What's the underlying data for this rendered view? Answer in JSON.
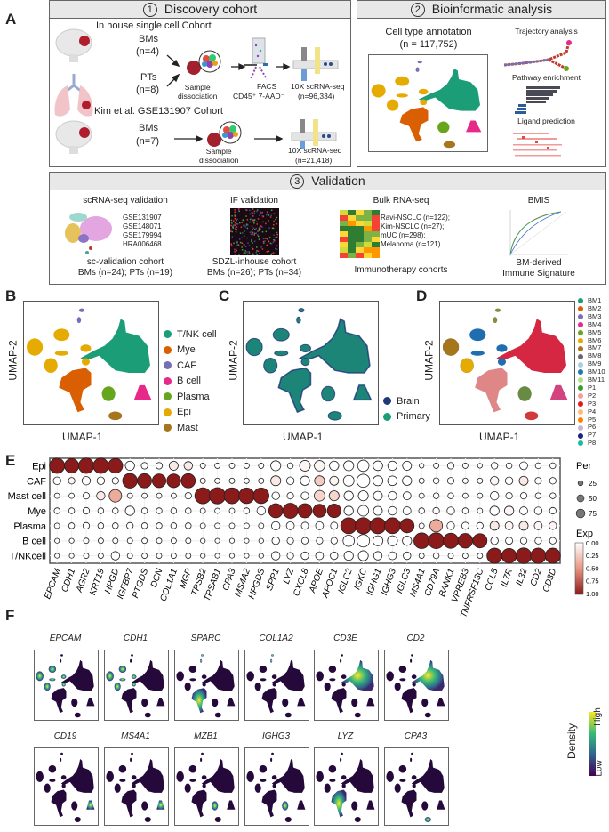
{
  "panel_labels": {
    "a": "A",
    "b": "B",
    "c": "C",
    "d": "D",
    "e": "E",
    "f": "F"
  },
  "discovery": {
    "number": "1",
    "title": "Discovery cohort",
    "inhouse_title": "In house single cell Cohort",
    "bms_label": "BMs",
    "bms_n": "(n=4)",
    "pts_label": "PTs",
    "pts_n": "(n=8)",
    "sample_dissociation": "Sample\ndissociation",
    "facs": "FACS",
    "facs_markers": "CD45⁺ 7-AAD⁻",
    "seq": "10X scRNA-seq",
    "seq_n": "(n=96,334)",
    "kim_title": "Kim et al. GSE131907 Cohort",
    "kim_bms_label": "BMs",
    "kim_bms_n": "(n=7)",
    "kim_sample_dissociation": "Sample\ndissociation",
    "kim_seq": "10X scRNA-seq",
    "kim_seq_n": "(n=21,418)"
  },
  "bioinfo": {
    "number": "2",
    "title": "Bioinformatic analysis",
    "annotation": "Cell type annotation",
    "annotation_n": "(n = 117,752)",
    "trajectory": "Trajectory analysis",
    "pathway": "Pathway enrichment",
    "ligand": "Ligand prediction"
  },
  "validation": {
    "number": "3",
    "title": "Validation",
    "sc": {
      "title": "scRNA-seq validation",
      "datasets": [
        "GSE131907",
        "GSE148071",
        "GSE179994",
        "HRA006468"
      ],
      "cohort": "sc-validation cohort",
      "counts": "BMs (n=24); PTs (n=19)"
    },
    "if": {
      "title": "IF validation",
      "cohort": "SDZL-inhouse cohort",
      "counts": "BMs (n=26); PTs (n=34)"
    },
    "bulk": {
      "title": "Bulk RNA-seq",
      "cohorts": [
        "Ravi-NSCLC (n=122);",
        "Kim-NSCLC (n=27);",
        "mUC (n=298);",
        "Melanoma (n=121)"
      ],
      "footer": "Immunotherapy cohorts"
    },
    "bmis": {
      "title": "BMIS",
      "footer1": "BM-derived",
      "footer2": "Immune Signature"
    }
  },
  "umap": {
    "xlabel": "UMAP-1",
    "ylabel": "UMAP-2",
    "celltype_legend": [
      {
        "label": "T/NK cell",
        "key": "tnk",
        "color": "#1b9e77"
      },
      {
        "label": "Mye",
        "key": "mye",
        "color": "#d95f02"
      },
      {
        "label": "CAF",
        "key": "caf",
        "color": "#7570b3"
      },
      {
        "label": "B cell",
        "key": "b",
        "color": "#e7298a"
      },
      {
        "label": "Plasma",
        "key": "plasma",
        "color": "#66a61e"
      },
      {
        "label": "Epi",
        "key": "epi",
        "color": "#e6ab02"
      },
      {
        "label": "Mast",
        "key": "mast",
        "color": "#a6761d"
      }
    ],
    "origin_legend": [
      {
        "label": "Brain",
        "color": "#1f3a7a"
      },
      {
        "label": "Primary",
        "color": "#1b9e77"
      }
    ],
    "sample_legend": [
      {
        "label": "BM1",
        "color": "#1b9e77"
      },
      {
        "label": "BM2",
        "color": "#d95f02"
      },
      {
        "label": "BM3",
        "color": "#7570b3"
      },
      {
        "label": "BM4",
        "color": "#e7298a"
      },
      {
        "label": "BM5",
        "color": "#66a61e"
      },
      {
        "label": "BM6",
        "color": "#e6ab02"
      },
      {
        "label": "BM7",
        "color": "#a6761d"
      },
      {
        "label": "BM8",
        "color": "#666666"
      },
      {
        "label": "BM9",
        "color": "#a6cee3"
      },
      {
        "label": "BM10",
        "color": "#1f78b4"
      },
      {
        "label": "BM11",
        "color": "#b2df8a"
      },
      {
        "label": "P1",
        "color": "#33a02c"
      },
      {
        "label": "P2",
        "color": "#fb9a99"
      },
      {
        "label": "P3",
        "color": "#e31a1c"
      },
      {
        "label": "P4",
        "color": "#fdbf6f"
      },
      {
        "label": "P5",
        "color": "#ff7f00"
      },
      {
        "label": "P6",
        "color": "#cab2d6"
      },
      {
        "label": "P7",
        "color": "#1a237e"
      },
      {
        "label": "P8",
        "color": "#1abc9c"
      }
    ]
  },
  "chart_data": {
    "type": "heatmap",
    "encoding": "dot size = percent expressing, dot color = scaled expression",
    "rows": [
      "Epi",
      "CAF",
      "Mast cell",
      "Mye",
      "Plasma",
      "B cell",
      "T/NKcell"
    ],
    "genes": [
      "EPCAM",
      "CDH1",
      "AGR2",
      "KRT19",
      "HPGD",
      "IGFBP7",
      "PTGDS",
      "DCN",
      "COL1A1",
      "MGP",
      "TPSB2",
      "TPSAB1",
      "CPA3",
      "MS4A2",
      "HPGDS",
      "SPP1",
      "LYZ",
      "CXCL8",
      "APOE",
      "APOC1",
      "IGLC2",
      "IGKC",
      "IGHG1",
      "IGHG3",
      "IGLC3",
      "MS4A1",
      "CD79A",
      "BANK1",
      "VPREB3",
      "TNFRSF13C",
      "CCL5",
      "IL7R",
      "IL32",
      "CD2",
      "CD3D"
    ],
    "pct": [
      [
        80,
        72,
        82,
        82,
        75,
        30,
        15,
        15,
        28,
        25,
        10,
        10,
        10,
        10,
        10,
        35,
        12,
        40,
        38,
        30,
        35,
        45,
        32,
        30,
        28,
        8,
        10,
        15,
        10,
        8,
        15,
        12,
        22,
        12,
        12
      ],
      [
        20,
        15,
        25,
        20,
        15,
        75,
        70,
        65,
        65,
        70,
        10,
        10,
        10,
        10,
        10,
        35,
        20,
        30,
        35,
        28,
        40,
        60,
        35,
        32,
        30,
        10,
        12,
        15,
        10,
        10,
        25,
        20,
        28,
        15,
        15
      ],
      [
        10,
        10,
        15,
        25,
        55,
        10,
        10,
        10,
        10,
        15,
        90,
        92,
        88,
        85,
        85,
        20,
        15,
        20,
        40,
        35,
        30,
        35,
        28,
        25,
        22,
        10,
        12,
        12,
        10,
        10,
        25,
        15,
        15,
        12,
        12
      ],
      [
        12,
        12,
        15,
        12,
        12,
        30,
        12,
        12,
        12,
        12,
        10,
        10,
        10,
        12,
        25,
        70,
        80,
        70,
        60,
        65,
        30,
        40,
        28,
        25,
        22,
        12,
        15,
        20,
        12,
        10,
        30,
        30,
        22,
        20,
        15
      ],
      [
        10,
        12,
        15,
        12,
        12,
        15,
        12,
        12,
        12,
        12,
        10,
        10,
        10,
        10,
        10,
        25,
        22,
        18,
        22,
        18,
        90,
        92,
        90,
        88,
        70,
        10,
        55,
        20,
        18,
        15,
        28,
        22,
        28,
        22,
        20
      ],
      [
        8,
        8,
        10,
        10,
        10,
        10,
        10,
        10,
        10,
        10,
        8,
        8,
        8,
        8,
        8,
        20,
        15,
        15,
        15,
        15,
        45,
        55,
        35,
        35,
        30,
        85,
        88,
        80,
        75,
        70,
        20,
        18,
        15,
        15,
        15
      ],
      [
        8,
        8,
        10,
        10,
        25,
        10,
        10,
        10,
        10,
        10,
        8,
        8,
        8,
        8,
        8,
        25,
        15,
        20,
        22,
        20,
        30,
        35,
        25,
        22,
        20,
        10,
        12,
        10,
        10,
        10,
        80,
        75,
        85,
        82,
        80
      ]
    ],
    "exp": [
      [
        1,
        1,
        1,
        1,
        1,
        0,
        0,
        0,
        0.1,
        0.1,
        0,
        0,
        0,
        0,
        0,
        0,
        0,
        0.05,
        0.05,
        0,
        0,
        0,
        0,
        0,
        0,
        0,
        0,
        0,
        0,
        0,
        0,
        0,
        0,
        0,
        0
      ],
      [
        0,
        0.05,
        0.02,
        0,
        0,
        1,
        1,
        1,
        1,
        1,
        0,
        0,
        0,
        0,
        0,
        0.1,
        0,
        0,
        0.25,
        0.05,
        0,
        0,
        0,
        0,
        0,
        0,
        0,
        0,
        0,
        0,
        0.05,
        0,
        0.1,
        0,
        0
      ],
      [
        0,
        0,
        0,
        0.1,
        0.4,
        0,
        0,
        0,
        0,
        0,
        1,
        1,
        1,
        1,
        1,
        0,
        0,
        0,
        0.2,
        0.2,
        0,
        0,
        0,
        0,
        0,
        0,
        0,
        0,
        0,
        0,
        0,
        0,
        0,
        0,
        0
      ],
      [
        0,
        0,
        0,
        0,
        0,
        0,
        0,
        0,
        0,
        0,
        0,
        0,
        0,
        0,
        0,
        1,
        1,
        1,
        1,
        1,
        0,
        0,
        0,
        0,
        0,
        0,
        0,
        0,
        0,
        0,
        0,
        0.05,
        0,
        0,
        0
      ],
      [
        0,
        0,
        0,
        0,
        0,
        0,
        0,
        0,
        0,
        0,
        0,
        0,
        0,
        0,
        0,
        0,
        0,
        0,
        0,
        0,
        1,
        1,
        1,
        1,
        1,
        0,
        0.4,
        0,
        0,
        0,
        0.1,
        0.05,
        0.1,
        0.05,
        0.05
      ],
      [
        0,
        0,
        0,
        0,
        0,
        0,
        0,
        0,
        0,
        0,
        0,
        0,
        0,
        0,
        0,
        0,
        0,
        0,
        0,
        0,
        0,
        0,
        0,
        0,
        0,
        1,
        1,
        1,
        1,
        1,
        0,
        0,
        0,
        0,
        0
      ],
      [
        0,
        0,
        0,
        0,
        0,
        0,
        0,
        0,
        0,
        0,
        0,
        0,
        0,
        0,
        0,
        0,
        0,
        0,
        0,
        0,
        0,
        0,
        0,
        0,
        0,
        0,
        0,
        0,
        0,
        0,
        1,
        1,
        1,
        1,
        1
      ]
    ],
    "size_legend": {
      "title": "Per",
      "values": [
        25,
        50,
        75
      ]
    },
    "color_legend": {
      "title": "Exp",
      "ticks": [
        "0.00",
        "0.25",
        "0.50",
        "0.75",
        "1.00"
      ],
      "low_color": "#ffffff",
      "high_color": "#8b1a1a"
    }
  },
  "density": {
    "legend_title": "Density",
    "high": "High",
    "low": "Low",
    "panels": [
      {
        "gene": "EPCAM",
        "highlight": [
          "epi"
        ]
      },
      {
        "gene": "CDH1",
        "highlight": [
          "epi"
        ]
      },
      {
        "gene": "SPARC",
        "highlight": [
          "mye",
          "caf"
        ]
      },
      {
        "gene": "COL1A2",
        "highlight": [
          "caf"
        ]
      },
      {
        "gene": "CD3E",
        "highlight": [
          "tnk"
        ]
      },
      {
        "gene": "CD2",
        "highlight": [
          "tnk"
        ]
      },
      {
        "gene": "CD19",
        "highlight": [
          "b"
        ]
      },
      {
        "gene": "MS4A1",
        "highlight": [
          "b"
        ]
      },
      {
        "gene": "MZB1",
        "highlight": [
          "plasma"
        ]
      },
      {
        "gene": "IGHG3",
        "highlight": [
          "plasma"
        ]
      },
      {
        "gene": "LYZ",
        "highlight": [
          "mye"
        ]
      },
      {
        "gene": "CPA3",
        "highlight": [
          "mast"
        ]
      }
    ]
  }
}
